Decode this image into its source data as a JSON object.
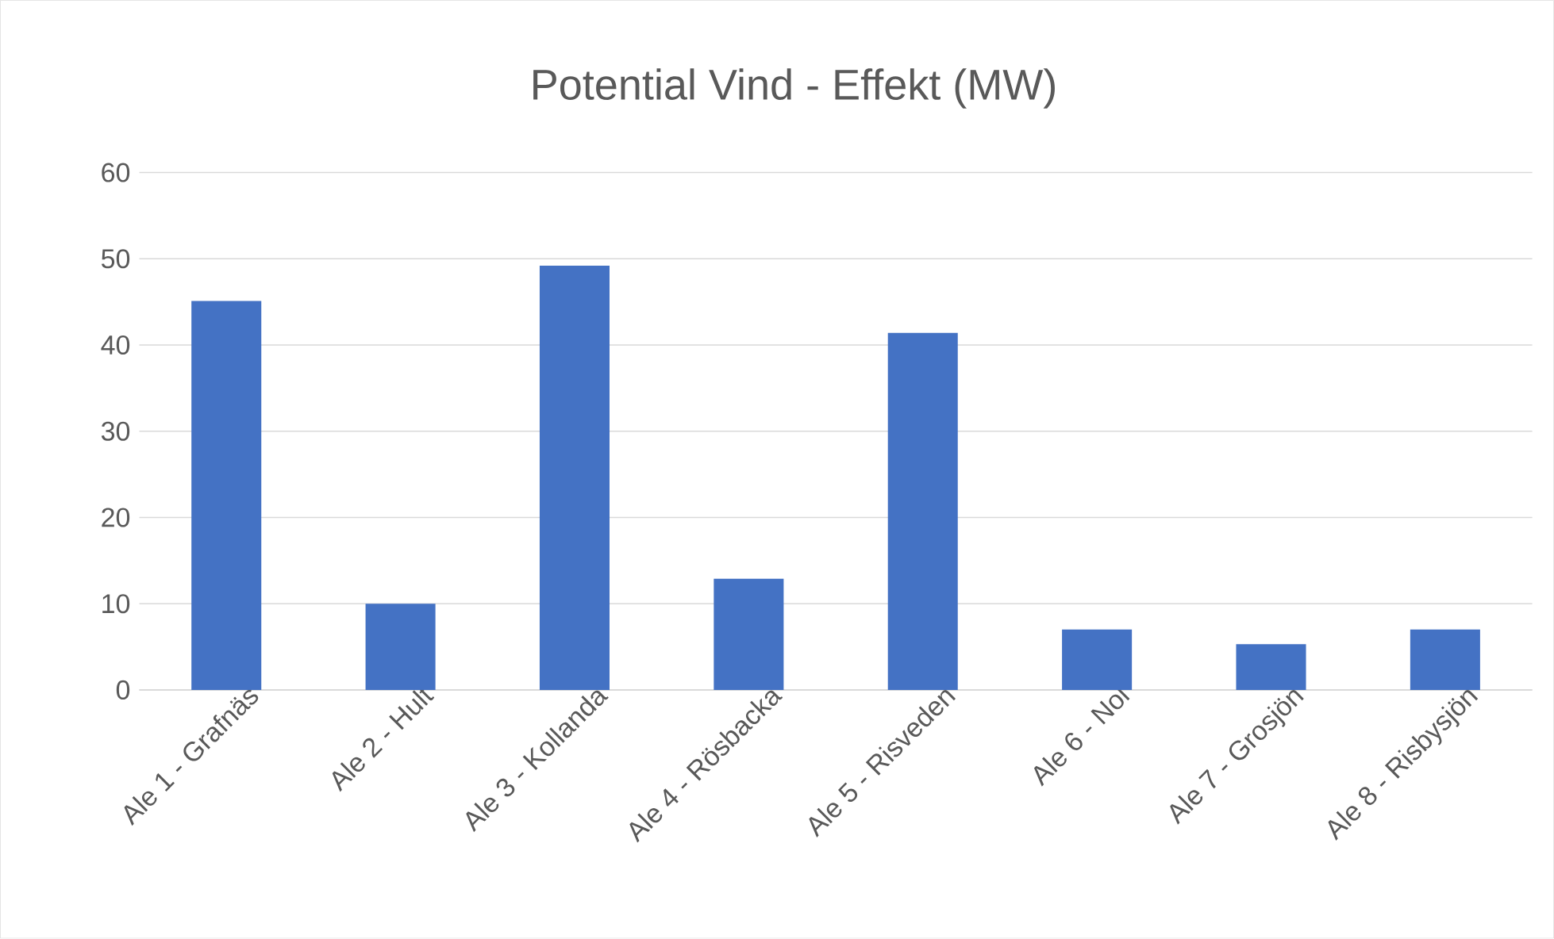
{
  "chart_data": {
    "type": "bar",
    "title": "Potential Vind - Effekt (MW)",
    "categories": [
      "Ale 1 - Grafnäs",
      "Ale 2 - Hult",
      "Ale 3 - Kollanda",
      "Ale 4 - Rösbacka",
      "Ale 5 - Risveden",
      "Ale 6 - Nol",
      "Ale 7 - Grosjön",
      "Ale 8 - Risbysjön"
    ],
    "values": [
      45.1,
      10,
      49.2,
      12.9,
      41.4,
      7,
      5.3,
      7
    ],
    "color": "#4472c4",
    "ylim": [
      0,
      60
    ],
    "yticks": [
      0,
      10,
      20,
      30,
      40,
      50,
      60
    ],
    "grid": "y"
  }
}
